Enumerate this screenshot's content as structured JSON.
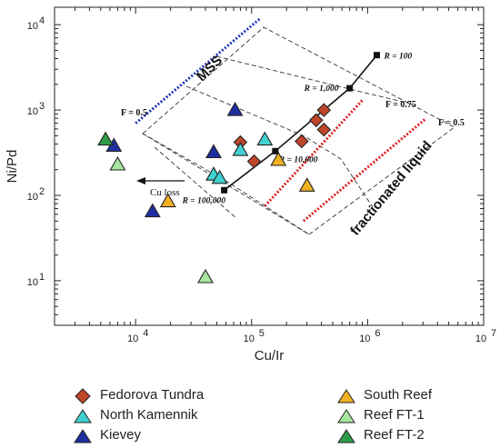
{
  "chart_data": {
    "type": "scatter",
    "xlabel": "Cu/Ir",
    "ylabel": "Ni/Pd",
    "x_scale": "log",
    "y_scale": "log",
    "xlim": [
      2000,
      10000000
    ],
    "ylim": [
      3,
      16000
    ],
    "x_ticks": [
      {
        "base": "10",
        "exp": "4"
      },
      {
        "base": "10",
        "exp": "5"
      },
      {
        "base": "10",
        "exp": "6"
      },
      {
        "base": "10",
        "exp": "7"
      }
    ],
    "y_ticks": [
      {
        "base": "10",
        "exp": "1"
      },
      {
        "base": "10",
        "exp": "2"
      },
      {
        "base": "10",
        "exp": "3"
      },
      {
        "base": "10",
        "exp": "4"
      }
    ],
    "grid": false,
    "legend_position": "bottom",
    "series": [
      {
        "name": "Fedorova Tundra",
        "marker": "diamond",
        "color": "#c0462a",
        "points": [
          [
            80000,
            420
          ],
          [
            105000,
            250
          ],
          [
            270000,
            430
          ],
          [
            360000,
            760
          ],
          [
            420000,
            1000
          ],
          [
            420000,
            590
          ]
        ]
      },
      {
        "name": "North Kamennik",
        "marker": "triangle",
        "color": "#40d0d0",
        "points": [
          [
            80000,
            340
          ],
          [
            130000,
            450
          ],
          [
            47000,
            175
          ],
          [
            53000,
            160
          ]
        ]
      },
      {
        "name": "Kievey",
        "marker": "triangle",
        "color": "#1f2fa0",
        "points": [
          [
            6500,
            380
          ],
          [
            47000,
            320
          ],
          [
            72000,
            1000
          ],
          [
            14000,
            65
          ]
        ]
      },
      {
        "name": "South Reef",
        "marker": "triangle",
        "color": "#f0b020",
        "points": [
          [
            170000,
            260
          ],
          [
            300000,
            130
          ],
          [
            19000,
            85
          ]
        ]
      },
      {
        "name": "Reef FT-1",
        "marker": "triangle",
        "color": "#a8e6a0",
        "points": [
          [
            7000,
            230
          ],
          [
            40000,
            11
          ]
        ]
      },
      {
        "name": "Reef FT-2",
        "marker": "triangle",
        "color": "#2d9a48",
        "points": [
          [
            5500,
            450
          ]
        ]
      }
    ],
    "r_line": {
      "points": [
        [
          58000,
          115
        ],
        [
          160000,
          330
        ],
        [
          700000,
          1800
        ],
        [
          1200000,
          4400
        ]
      ],
      "labels": [
        "R = 100,000",
        "R = 10,000",
        "R = 1,000",
        "R = 100"
      ]
    },
    "mss_line": {
      "label": "MSS",
      "color": "#2233bb",
      "points": [
        [
          10000,
          700
        ],
        [
          120000,
          12000
        ]
      ]
    },
    "liquid_lines": {
      "label": "fractionated liquid",
      "color": "#e02020",
      "lines": [
        [
          [
            130000,
            75
          ],
          [
            900000,
            1300
          ]
        ],
        [
          [
            280000,
            50
          ],
          [
            3200000,
            800
          ]
        ]
      ]
    },
    "envelope_labels": [
      "F = 0.5",
      "F = 0.75",
      "F = 0.5"
    ],
    "arrow_label": "Cu loss"
  }
}
